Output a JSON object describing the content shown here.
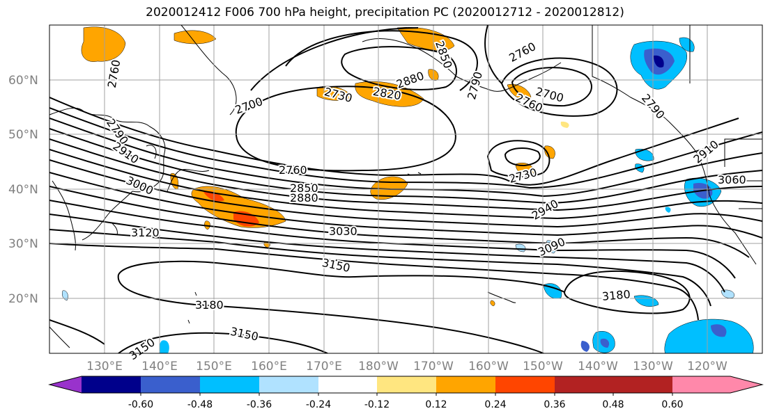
{
  "title": "2020012412 F006 700 hPa height, precipitation PC (2020012712 - 2020012812)",
  "lat_labels": [
    "60°N",
    "50°N",
    "40°N",
    "30°N",
    "20°N"
  ],
  "lon_labels": [
    "130°E",
    "140°E",
    "150°E",
    "160°E",
    "170°E",
    "180°W",
    "170°W",
    "160°W",
    "150°W",
    "140°W",
    "130°W",
    "120°W"
  ],
  "contour_labels": [
    "2760",
    "2700",
    "2730",
    "2820",
    "2880",
    "2850",
    "2760",
    "2790",
    "2910",
    "3000",
    "3120",
    "2760",
    "2850",
    "2880",
    "3030",
    "3150",
    "3180",
    "3150",
    "3150",
    "2760",
    "2790",
    "2700",
    "2730",
    "2940",
    "3090",
    "3180",
    "2910",
    "3060",
    "2790",
    "2850",
    "2820"
  ],
  "colorbar": {
    "tick_labels": [
      "-0.60",
      "-0.48",
      "-0.36",
      "-0.24",
      "-0.12",
      "0.12",
      "0.24",
      "0.36",
      "0.48",
      "0.60"
    ],
    "colors": [
      "#9932cc",
      "#00008b",
      "#3a5fcd",
      "#00bfff",
      "#b0e2ff",
      "#ffffff",
      "#ffe680",
      "#ffa500",
      "#ff4500",
      "#b22222",
      "#ff88aa"
    ]
  }
}
